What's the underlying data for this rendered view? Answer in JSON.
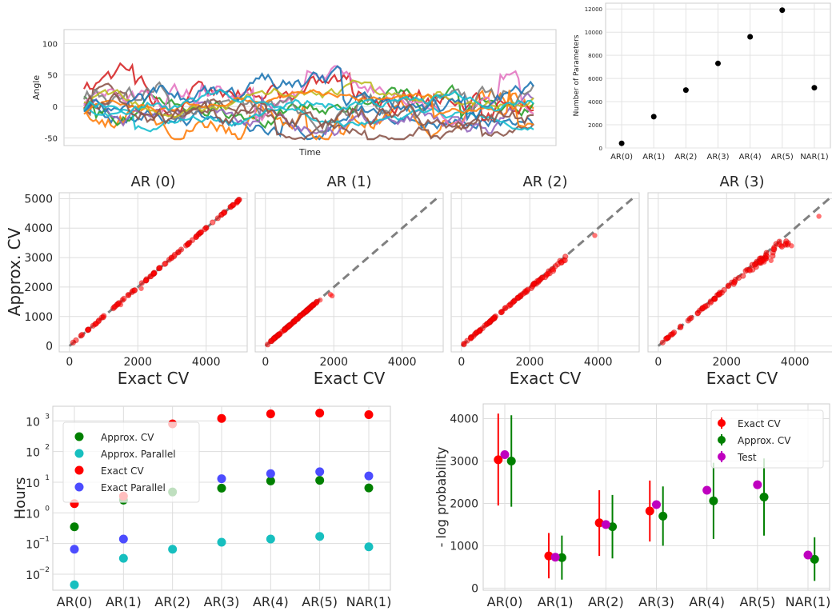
{
  "chart_data": [
    {
      "id": "timeseries",
      "type": "line",
      "xlabel": "Time",
      "ylabel": "Angle",
      "ylim": [
        -62,
        122
      ],
      "yticks": [
        -50,
        0,
        50,
        100
      ],
      "grid": true,
      "colors": [
        "#1f77b4",
        "#ff7f0e",
        "#2ca02c",
        "#d62728",
        "#9467bd",
        "#8c564b",
        "#e377c2",
        "#7f7f7f",
        "#bcbd22",
        "#17becf",
        "#1f77b4",
        "#ff7f0e",
        "#8c564b",
        "#17becf"
      ]
    },
    {
      "id": "params",
      "type": "scatter",
      "categories": [
        "AR(0)",
        "AR(1)",
        "AR(2)",
        "AR(3)",
        "AR(4)",
        "AR(5)",
        "NAR(1)"
      ],
      "ylabel": "Number of Parameters",
      "values": [
        400,
        2700,
        5000,
        7300,
        9600,
        11900,
        5200
      ],
      "ylim": [
        0,
        12500
      ],
      "yticks": [
        0,
        2000,
        4000,
        6000,
        8000,
        10000,
        12000
      ],
      "color": "#000000",
      "grid": true
    },
    {
      "id": "cv_scatter",
      "type": "scatter",
      "xlabel": "Exact CV",
      "ylabel": "Approx. CV",
      "xlim": [
        -300,
        5200
      ],
      "ylim": [
        -200,
        5200
      ],
      "xticks": [
        0,
        2000,
        4000
      ],
      "yticks": [
        0,
        1000,
        2000,
        3000,
        4000,
        5000
      ],
      "grid": true,
      "panels": [
        {
          "title": "AR (0)",
          "max": 5000,
          "dev": 0.0,
          "extra": [
            [
              1500,
              1400
            ],
            [
              2100,
              1950
            ],
            [
              4900,
              4850
            ],
            [
              800,
              770
            ]
          ]
        },
        {
          "title": "AR (1)",
          "max": 1600,
          "dev": 0.02,
          "extra": [
            [
              1950,
              1700
            ],
            [
              1900,
              1750
            ],
            [
              1600,
              1560
            ]
          ]
        },
        {
          "title": "AR (2)",
          "max": 3100,
          "dev": 0.06,
          "extra": [
            [
              3900,
              3750
            ],
            [
              3000,
              2900
            ],
            [
              2700,
              2600
            ],
            [
              2500,
              2400
            ]
          ]
        },
        {
          "title": "AR (3)",
          "max": 3900,
          "dev": 0.1,
          "extra": [
            [
              4700,
              4400
            ],
            [
              3900,
              3400
            ],
            [
              3600,
              3400
            ],
            [
              3300,
              2900
            ],
            [
              3100,
              2850
            ]
          ]
        }
      ]
    },
    {
      "id": "hours",
      "type": "scatter",
      "categories": [
        "AR(0)",
        "AR(1)",
        "AR(2)",
        "AR(3)",
        "AR(4)",
        "AR(5)",
        "NAR(1)"
      ],
      "ylabel": "Hours",
      "yscale": "log",
      "ylim": [
        0.003,
        3000
      ],
      "yticks": [
        0.01,
        0.1,
        1,
        10,
        100,
        1000
      ],
      "yticklabels": [
        "10",
        "10",
        "10",
        "10",
        "10",
        "10"
      ],
      "ytickexp": [
        "−2",
        "−1",
        "0",
        "1",
        "2",
        "3"
      ],
      "grid": true,
      "legend": "top-left",
      "series": [
        {
          "name": "Approx. CV",
          "color": "#008000",
          "values": [
            0.35,
            2.6,
            4.8,
            6.4,
            11,
            11.5,
            6.5
          ]
        },
        {
          "name": "Approx. Parallel",
          "color": "#17bfbf",
          "values": [
            0.0045,
            0.033,
            0.065,
            0.11,
            0.14,
            0.17,
            0.078
          ]
        },
        {
          "name": "Exact CV",
          "color": "#ff0000",
          "values": [
            2.0,
            3.5,
            800,
            1200,
            1700,
            1800,
            1600
          ]
        },
        {
          "name": "Exact Parallel",
          "color": "#4c4cff",
          "values": [
            0.065,
            0.14,
            null,
            13,
            19,
            22,
            16
          ]
        }
      ]
    },
    {
      "id": "logprob",
      "type": "scatter",
      "categories": [
        "AR(0)",
        "AR(1)",
        "AR(2)",
        "AR(3)",
        "AR(4)",
        "AR(5)",
        "NAR(1)"
      ],
      "ylabel": "- log probability",
      "ylim": [
        -50,
        4350
      ],
      "yticks": [
        0,
        1000,
        2000,
        3000,
        4000
      ],
      "grid": true,
      "legend": "top-right",
      "series": [
        {
          "name": "Exact CV",
          "color": "#ff0000",
          "offset": -0.13,
          "values": [
            3030,
            760,
            1540,
            1820,
            null,
            null,
            null
          ],
          "lo": [
            1950,
            230,
            760,
            1100,
            null,
            null,
            null
          ],
          "hi": [
            4120,
            1300,
            2310,
            2540,
            null,
            null,
            null
          ]
        },
        {
          "name": "Approx. CV",
          "color": "#008000",
          "offset": 0.13,
          "values": [
            3000,
            720,
            1450,
            1700,
            2060,
            2150,
            680
          ],
          "lo": [
            1920,
            200,
            700,
            1000,
            1160,
            1240,
            170
          ],
          "hi": [
            4080,
            1240,
            2200,
            2400,
            2960,
            3060,
            1200
          ]
        },
        {
          "name": "Test",
          "color": "#bf00bf",
          "offset": 0.0,
          "values": [
            3150,
            730,
            1500,
            1970,
            2310,
            2440,
            780
          ],
          "lo": [
            null,
            null,
            null,
            null,
            null,
            null,
            null
          ],
          "hi": [
            null,
            null,
            null,
            null,
            null,
            null,
            null
          ]
        }
      ]
    }
  ]
}
